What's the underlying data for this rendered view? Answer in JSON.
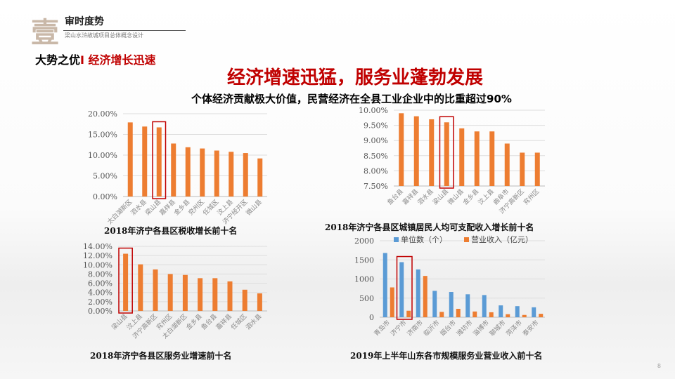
{
  "header": {
    "numeral": "壹",
    "title": "审时度势",
    "subtitle": "梁山水浒故城项目总体概念设计"
  },
  "section": {
    "label": "大势之优",
    "sep": "I ",
    "highlight": "经济增长迅速"
  },
  "headline": "经济增速迅猛，服务业蓬勃发展",
  "subheadline": "个体经济贡献极大价值，民营经济在全县工业企业中的比重超过90%",
  "page_number": "8",
  "colors": {
    "orange": "#ED7D31",
    "blue": "#5B9BD5",
    "highlight": "#C00000"
  },
  "chart_data": [
    {
      "type": "bar",
      "title": "2018年济宁各县区税收增长前十名",
      "categories": [
        "太白湖新区",
        "泗水县",
        "梁山县",
        "嘉祥县",
        "金乡县",
        "兖州区",
        "任城区",
        "汶上县",
        "济宁经开区",
        "微山县"
      ],
      "values": [
        17.9,
        16.9,
        16.7,
        12.8,
        11.9,
        11.6,
        11.1,
        10.8,
        10.5,
        9.2
      ],
      "ylim": [
        0,
        20
      ],
      "yticks": [
        "0.00%",
        "5.00%",
        "10.00%",
        "15.00%",
        "20.00%"
      ],
      "highlight": "梁山县",
      "grid": true
    },
    {
      "type": "bar",
      "title": "2018年济宁各县区城镇居民人均可支配收入增长前十名",
      "categories": [
        "鱼台县",
        "嘉祥县",
        "泗水县",
        "梁山县",
        "微山县",
        "金乡县",
        "汶上县",
        "曲阜市",
        "济宁高新区",
        "兖州区"
      ],
      "values": [
        9.9,
        9.8,
        9.7,
        9.6,
        9.4,
        9.3,
        9.3,
        8.9,
        8.6,
        8.6
      ],
      "ylim": [
        7.5,
        10
      ],
      "yticks": [
        "7.50%",
        "8.00%",
        "8.50%",
        "9.00%",
        "9.50%",
        "10.00%"
      ],
      "highlight": "梁山县",
      "grid": true
    },
    {
      "type": "bar",
      "title": "2018年济宁各县区服务业增速前十名",
      "categories": [
        "梁山县",
        "汶上县",
        "济宁高新区",
        "兖州区",
        "太白湖新区",
        "金乡县",
        "鱼台县",
        "嘉祥县",
        "任城区",
        "泗水县"
      ],
      "values": [
        12.4,
        10.1,
        9.0,
        8.0,
        7.8,
        7.1,
        7.1,
        6.4,
        4.6,
        3.8
      ],
      "ylim": [
        0,
        14
      ],
      "yticks": [
        "0.00%",
        "2.00%",
        "4.00%",
        "6.00%",
        "8.00%",
        "10.00%",
        "12.00%",
        "14.00%"
      ],
      "highlight": "梁山县",
      "grid": true
    },
    {
      "type": "bar",
      "title": "2019年上半年山东各市规模服务业营业收入前十名",
      "categories": [
        "青岛市",
        "济宁市",
        "济南市",
        "临沂市",
        "烟台市",
        "潍坊市",
        "淄博市",
        "聊城市",
        "菏泽市",
        "泰安市"
      ],
      "series": [
        {
          "name": "单位数（个）",
          "values": [
            1680,
            1440,
            1250,
            690,
            660,
            600,
            580,
            310,
            290,
            260
          ]
        },
        {
          "name": "营业收入（亿元）",
          "values": [
            780,
            170,
            1080,
            140,
            220,
            150,
            130,
            80,
            60,
            90
          ]
        }
      ],
      "ylim": [
        0,
        2000
      ],
      "yticks": [
        "0",
        "500",
        "1000",
        "1500",
        "2000"
      ],
      "highlight": "济宁市",
      "legend": "top",
      "grid": true
    }
  ]
}
